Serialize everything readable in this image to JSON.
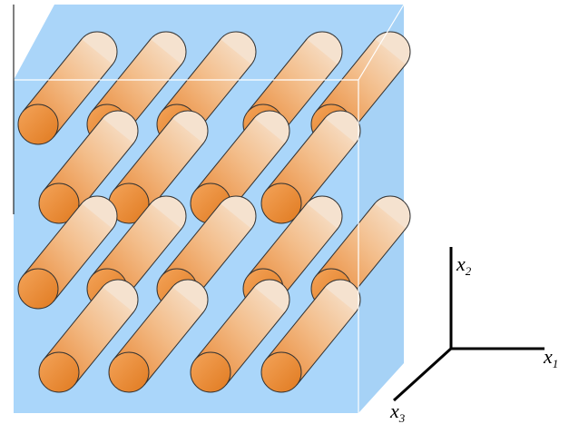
{
  "axes": [
    {
      "symbol": "x",
      "subscript": "1"
    },
    {
      "symbol": "x",
      "subscript": "2"
    },
    {
      "symbol": "x",
      "subscript": "3"
    }
  ]
}
